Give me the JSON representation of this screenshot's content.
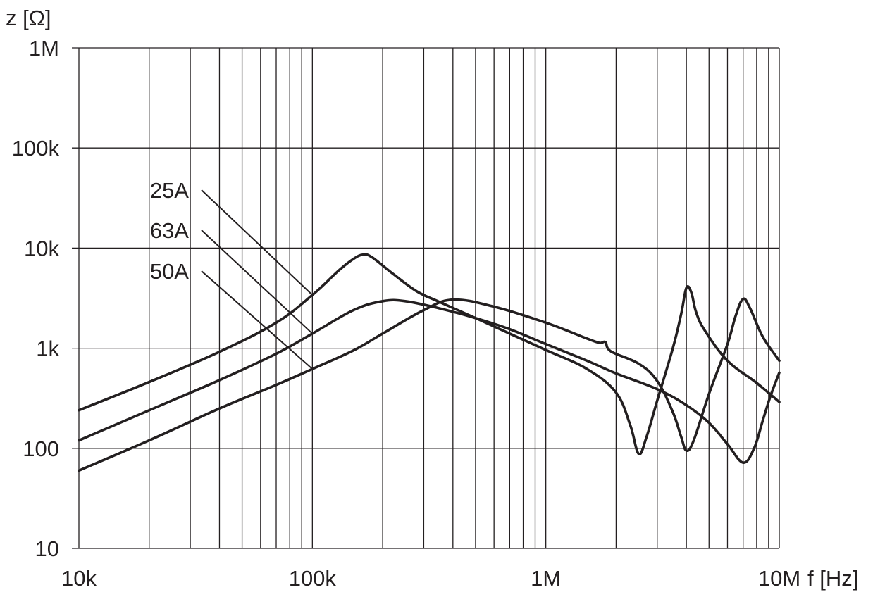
{
  "chart_data": {
    "type": "line",
    "x_scale": "log",
    "y_scale": "log",
    "xlabel": "f [Hz]",
    "ylabel": "z [Ω]",
    "xlim": [
      10000,
      10000000
    ],
    "ylim": [
      10,
      1000000
    ],
    "grid": true,
    "x_ticks": [
      {
        "value": 10000,
        "label": "10k"
      },
      {
        "value": 100000,
        "label": "100k"
      },
      {
        "value": 1000000,
        "label": "1M"
      },
      {
        "value": 10000000,
        "label": "10M"
      }
    ],
    "y_ticks": [
      {
        "value": 10,
        "label": "10"
      },
      {
        "value": 100,
        "label": "100"
      },
      {
        "value": 1000,
        "label": "1k"
      },
      {
        "value": 10000,
        "label": "10k"
      },
      {
        "value": 100000,
        "label": "100k"
      },
      {
        "value": 1000000,
        "label": "1M"
      }
    ],
    "series": [
      {
        "name": "25A",
        "label_anchor": [
          100000,
          3400
        ],
        "points": [
          [
            10000,
            240
          ],
          [
            20000,
            460
          ],
          [
            40000,
            920
          ],
          [
            70000,
            1800
          ],
          [
            100000,
            3400
          ],
          [
            130000,
            6000
          ],
          [
            150000,
            7800
          ],
          [
            165000,
            8600
          ],
          [
            180000,
            8100
          ],
          [
            220000,
            5600
          ],
          [
            280000,
            3700
          ],
          [
            350000,
            2900
          ],
          [
            500000,
            2000
          ],
          [
            700000,
            1400
          ],
          [
            1000000,
            960
          ],
          [
            1500000,
            620
          ],
          [
            2000000,
            360
          ],
          [
            2300000,
            170
          ],
          [
            2500000,
            88
          ],
          [
            2700000,
            130
          ],
          [
            3000000,
            300
          ],
          [
            3500000,
            1000
          ],
          [
            3800000,
            2200
          ],
          [
            4000000,
            4000
          ],
          [
            4200000,
            3600
          ],
          [
            4400000,
            2300
          ],
          [
            4800000,
            1500
          ],
          [
            6000000,
            750
          ],
          [
            8000000,
            450
          ],
          [
            10000000,
            290
          ]
        ]
      },
      {
        "name": "63A",
        "label_anchor": [
          100000,
          1400
        ],
        "points": [
          [
            10000,
            120
          ],
          [
            20000,
            240
          ],
          [
            40000,
            480
          ],
          [
            70000,
            880
          ],
          [
            100000,
            1400
          ],
          [
            150000,
            2400
          ],
          [
            200000,
            2950
          ],
          [
            250000,
            2950
          ],
          [
            350000,
            2500
          ],
          [
            500000,
            2000
          ],
          [
            700000,
            1550
          ],
          [
            1000000,
            1100
          ],
          [
            1500000,
            750
          ],
          [
            2000000,
            560
          ],
          [
            3000000,
            390
          ],
          [
            4000000,
            270
          ],
          [
            5000000,
            180
          ],
          [
            6000000,
            110
          ],
          [
            7000000,
            72
          ],
          [
            7800000,
            100
          ],
          [
            8500000,
            190
          ],
          [
            9200000,
            340
          ],
          [
            10000000,
            570
          ]
        ]
      },
      {
        "name": "50A",
        "label_anchor": [
          100000,
          620
        ],
        "points": [
          [
            10000,
            60
          ],
          [
            20000,
            120
          ],
          [
            40000,
            250
          ],
          [
            70000,
            430
          ],
          [
            100000,
            620
          ],
          [
            150000,
            950
          ],
          [
            200000,
            1400
          ],
          [
            300000,
            2400
          ],
          [
            400000,
            3050
          ],
          [
            600000,
            2600
          ],
          [
            1000000,
            1800
          ],
          [
            1500000,
            1250
          ],
          [
            1700000,
            1130
          ],
          [
            1800000,
            1150
          ],
          [
            1900000,
            930
          ],
          [
            2500000,
            700
          ],
          [
            3000000,
            470
          ],
          [
            3500000,
            230
          ],
          [
            3800000,
            130
          ],
          [
            4000000,
            95
          ],
          [
            4300000,
            120
          ],
          [
            5000000,
            350
          ],
          [
            6000000,
            1100
          ],
          [
            6500000,
            2100
          ],
          [
            7000000,
            3100
          ],
          [
            7500000,
            2500
          ],
          [
            8500000,
            1300
          ],
          [
            10000000,
            750
          ]
        ]
      }
    ]
  }
}
